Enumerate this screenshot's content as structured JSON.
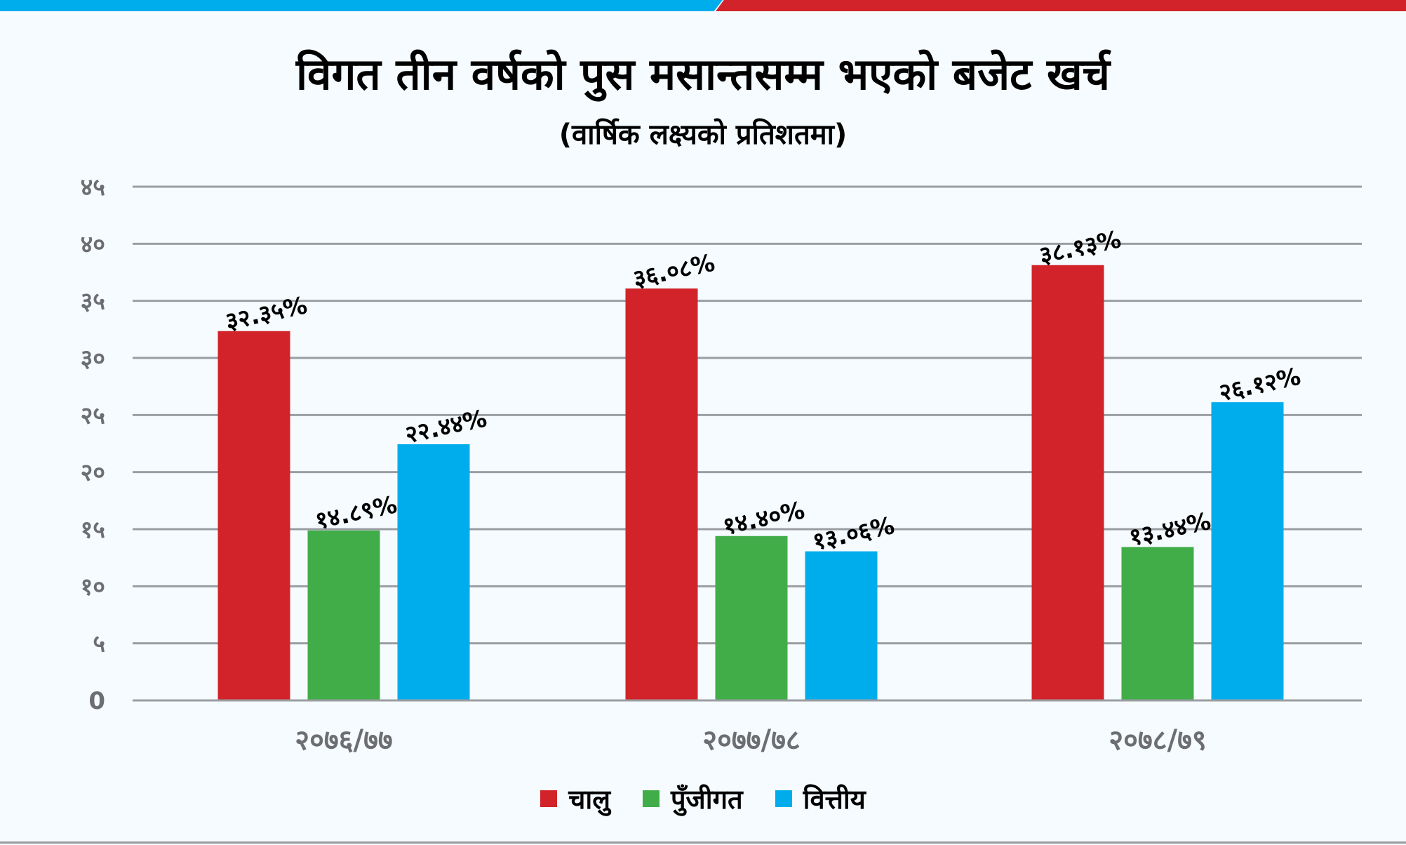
{
  "chart_data": {
    "type": "bar",
    "title": "विगत तीन वर्षको पुस मसान्तसम्म भएको बजेट खर्च",
    "subtitle": "(वार्षिक लक्ष्यको प्रतिशतमा)",
    "categories": [
      "२०७६/७७",
      "२०७७/७८",
      "२०७८/७९"
    ],
    "series": [
      {
        "name": "चालु",
        "color": "#d2232a",
        "values": [
          32.35,
          36.08,
          38.13
        ],
        "labels": [
          "३२.३५%",
          "३६.०८%",
          "३८.१३%"
        ]
      },
      {
        "name": "पुँजीगत",
        "color": "#41ad49",
        "values": [
          14.89,
          14.4,
          13.44
        ],
        "labels": [
          "१४.८९%",
          "१४.४०%",
          "१३.४४%"
        ]
      },
      {
        "name": "वित्तीय",
        "color": "#00adec",
        "values": [
          22.44,
          13.06,
          26.12
        ],
        "labels": [
          "२२.४४%",
          "१३.०६%",
          "२६.१२%"
        ]
      }
    ],
    "ylim": [
      0,
      45
    ],
    "yticks": [
      0,
      5,
      10,
      15,
      20,
      25,
      30,
      35,
      40,
      45
    ],
    "ytick_labels": [
      "0",
      "५",
      "१०",
      "१५",
      "२०",
      "२५",
      "३०",
      "३५",
      "४०",
      "४५"
    ],
    "grid": true,
    "legend": "bottom-center",
    "xlabel": "",
    "ylabel": ""
  },
  "colors": {
    "accent_blue": "#00adec",
    "accent_red": "#d2232a",
    "grid": "#9a9ea2",
    "tick_text": "#6d6e71"
  }
}
